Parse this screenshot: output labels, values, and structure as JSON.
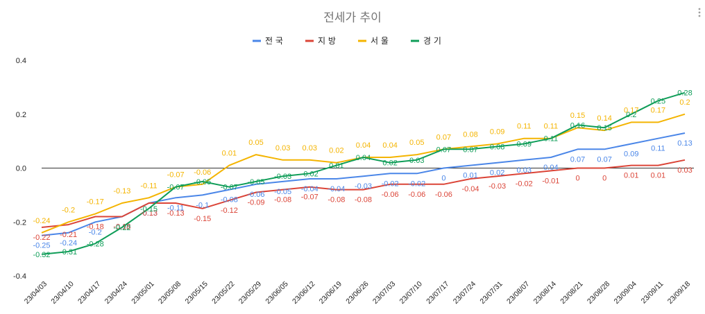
{
  "chart_data": {
    "type": "line",
    "title": "전세가 추이",
    "xlabel": "",
    "ylabel": "",
    "ylim": [
      -0.4,
      0.4
    ],
    "yticks": [
      "0.4",
      "0.2",
      "0.0",
      "-0.2",
      "-0.4"
    ],
    "ytick_values": [
      0.4,
      0.2,
      0.0,
      -0.2,
      -0.4
    ],
    "legend_position": "top",
    "grid": false,
    "categories": [
      "23/04/03",
      "23/04/10",
      "23/04/17",
      "23/04/24",
      "23/05/01",
      "23/05/08",
      "23/05/15",
      "23/05/22",
      "23/05/29",
      "23/06/05",
      "23/06/12",
      "23/06/19",
      "23/06/26",
      "23/07/03",
      "23/07/10",
      "23/07/17",
      "23/07/24",
      "23/07/31",
      "23/08/07",
      "23/08/14",
      "23/08/21",
      "23/08/28",
      "23/09/04",
      "23/09/11",
      "23/09/18"
    ],
    "series": [
      {
        "name": "전국",
        "color": "#4a86e8",
        "labels_visible": true,
        "label_pos": "below",
        "values": [
          -0.25,
          -0.24,
          -0.2,
          -0.18,
          -0.13,
          -0.11,
          -0.1,
          -0.08,
          -0.06,
          -0.05,
          -0.04,
          -0.04,
          -0.03,
          -0.02,
          -0.02,
          0,
          0.01,
          0.02,
          0.03,
          0.04,
          0.07,
          0.07,
          0.09,
          0.11,
          0.13
        ]
      },
      {
        "name": "지방",
        "color": "#db4437",
        "labels_visible": true,
        "label_pos": "below",
        "values": [
          -0.22,
          -0.21,
          -0.18,
          -0.18,
          -0.13,
          -0.13,
          -0.15,
          -0.12,
          -0.09,
          -0.08,
          -0.07,
          -0.08,
          -0.08,
          -0.06,
          -0.06,
          -0.06,
          -0.04,
          -0.03,
          -0.02,
          -0.01,
          0,
          0,
          0.01,
          0.01,
          0.03
        ]
      },
      {
        "name": "서울",
        "color": "#f4b400",
        "labels_visible": true,
        "label_pos": "above",
        "values": [
          -0.24,
          -0.2,
          -0.17,
          -0.13,
          -0.11,
          -0.07,
          -0.06,
          0.01,
          0.05,
          0.03,
          0.03,
          0.02,
          0.04,
          0.04,
          0.05,
          0.07,
          0.08,
          0.09,
          0.11,
          0.11,
          0.15,
          0.14,
          0.17,
          0.17,
          0.2
        ]
      },
      {
        "name": "경기",
        "color": "#0f9d58",
        "labels_visible": true,
        "label_pos": "center",
        "values": [
          -0.32,
          -0.31,
          -0.28,
          -0.22,
          -0.15,
          -0.07,
          -0.05,
          -0.07,
          -0.05,
          -0.03,
          -0.02,
          0.01,
          0.04,
          0.02,
          0.03,
          0.07,
          0.07,
          0.08,
          0.09,
          0.11,
          0.16,
          0.15,
          0.2,
          0.25,
          0.28
        ]
      }
    ]
  }
}
